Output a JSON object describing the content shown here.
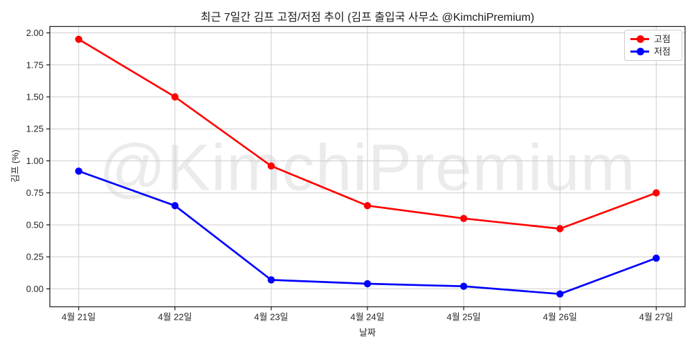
{
  "watermark": "@KimchiPremium",
  "chart_data": {
    "type": "line",
    "title": "최근 7일간 김프 고점/저점 추이 (김프 출입국 사무소 @KimchiPremium)",
    "xlabel": "날짜",
    "ylabel": "김프 (%)",
    "categories": [
      "4월 21일",
      "4월 22일",
      "4월 23일",
      "4월 24일",
      "4월 25일",
      "4월 26일",
      "4월 27일"
    ],
    "series": [
      {
        "name": "고점",
        "color": "#ff0000",
        "values": [
          1.95,
          1.5,
          0.96,
          0.65,
          0.55,
          0.47,
          0.75
        ]
      },
      {
        "name": "저점",
        "color": "#0000ff",
        "values": [
          0.92,
          0.65,
          0.07,
          0.04,
          0.02,
          -0.04,
          0.24
        ]
      }
    ],
    "yticks": [
      0.0,
      0.25,
      0.5,
      0.75,
      1.0,
      1.25,
      1.5,
      1.75,
      2.0
    ],
    "ylim": [
      -0.14,
      2.05
    ],
    "xlim": [
      -0.3,
      6.3
    ],
    "grid": true,
    "legend_position": "upper right",
    "grid_color": "#cccccc",
    "text_color": "#262626"
  }
}
